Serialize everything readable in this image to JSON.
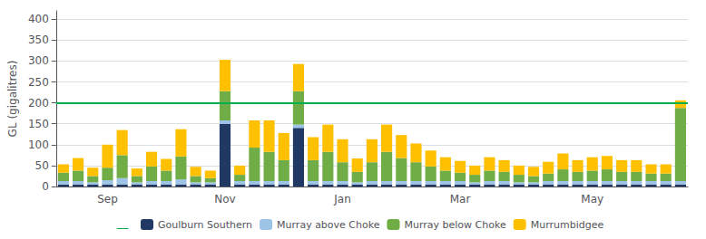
{
  "chart_data": {
    "type": "bar",
    "stacked": true,
    "ylabel": "GL (gigalitres)",
    "categories": [
      null,
      null,
      null,
      "Sep",
      null,
      null,
      null,
      null,
      null,
      null,
      null,
      "Nov",
      null,
      null,
      null,
      null,
      null,
      null,
      null,
      "Jan",
      null,
      null,
      null,
      null,
      null,
      null,
      null,
      "Mar",
      null,
      null,
      null,
      null,
      null,
      null,
      null,
      null,
      "May",
      null,
      null,
      null,
      null,
      null,
      null
    ],
    "series": [
      {
        "name": "Goulburn Southern",
        "color": "#1f3864",
        "values": [
          5,
          5,
          5,
          5,
          5,
          5,
          5,
          5,
          5,
          5,
          5,
          150,
          5,
          5,
          5,
          5,
          140,
          5,
          5,
          5,
          5,
          5,
          5,
          5,
          5,
          5,
          5,
          5,
          5,
          5,
          5,
          5,
          5,
          5,
          5,
          5,
          5,
          5,
          5,
          5,
          5,
          5,
          5
        ]
      },
      {
        "name": "Murray above Choke",
        "color": "#9dc3e6",
        "values": [
          8,
          8,
          5,
          10,
          15,
          5,
          8,
          8,
          12,
          5,
          5,
          8,
          8,
          8,
          8,
          8,
          8,
          8,
          8,
          8,
          5,
          8,
          8,
          8,
          8,
          8,
          8,
          8,
          5,
          8,
          8,
          5,
          5,
          8,
          8,
          8,
          8,
          8,
          8,
          8,
          8,
          8,
          8
        ]
      },
      {
        "name": "Murray below Choke",
        "color": "#70ad47",
        "values": [
          20,
          25,
          15,
          30,
          55,
          15,
          35,
          25,
          55,
          15,
          10,
          70,
          15,
          80,
          70,
          50,
          80,
          50,
          70,
          45,
          25,
          45,
          70,
          55,
          45,
          35,
          25,
          20,
          18,
          25,
          22,
          18,
          15,
          18,
          28,
          22,
          25,
          28,
          22,
          22,
          18,
          18,
          175
        ]
      },
      {
        "name": "Murrumbidgee",
        "color": "#ffc000",
        "values": [
          20,
          30,
          20,
          55,
          60,
          18,
          35,
          28,
          65,
          22,
          18,
          75,
          22,
          65,
          75,
          65,
          65,
          55,
          65,
          55,
          32,
          55,
          65,
          55,
          45,
          38,
          32,
          28,
          22,
          32,
          28,
          22,
          22,
          28,
          38,
          28,
          32,
          32,
          28,
          28,
          22,
          22,
          18
        ]
      }
    ],
    "reference_line": {
      "value": 200,
      "color": "#00b050"
    },
    "annotation": "—",
    "ylim": [
      0,
      420
    ],
    "yticks": [
      0,
      50,
      100,
      150,
      200,
      250,
      300,
      350,
      400
    ],
    "grid": true,
    "legend": "bottom"
  }
}
